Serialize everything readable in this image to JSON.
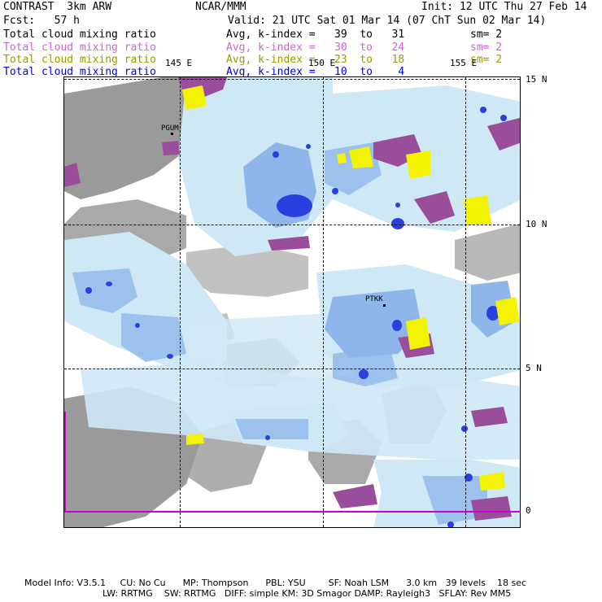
{
  "header": {
    "model": "CONTRAST  3km ARW",
    "center": "NCAR/MMM",
    "init": "Init: 12 UTC Thu 27 Feb 14",
    "fcst": "Fcst:   57 h",
    "valid": "Valid: 21 UTC Sat 01 Mar 14 (07 ChT Sun 02 Mar 14)"
  },
  "fields": [
    {
      "name": "Total cloud mixing ratio",
      "stat": "Avg, k-index =   39  to   31",
      "sm": "sm= 2",
      "color": "#000000"
    },
    {
      "name": "Total cloud mixing ratio",
      "stat": "Avg, k-index =   30  to   24",
      "sm": "sm= 2",
      "color": "#cc66cc"
    },
    {
      "name": "Total cloud mixing ratio",
      "stat": "Avg, k-index =   23  to   18",
      "sm": "sm= 2",
      "color": "#999900"
    },
    {
      "name": "Total cloud mixing ratio",
      "stat": "Avg, k-index =   10  to    4",
      "sm": "",
      "color": "#0000ee"
    }
  ],
  "map": {
    "lon_labels": [
      "145 E",
      "150 E",
      "155 E"
    ],
    "lat_labels": [
      "15 N",
      "10 N",
      "5 N",
      "0"
    ],
    "stations": [
      "PGUM",
      "PTKK"
    ]
  },
  "footer": {
    "line1": "Model Info: V3.5.1     CU: No Cu      MP: Thompson      PBL: YSU        SF: Noah LSM      3.0 km   39 levels    18 sec",
    "line2": "LW: RRTMG    SW: RRTMG   DIFF: simple KM: 3D Smagor DAMP: Rayleigh3   SFLAY: Rev MM5"
  },
  "colors": {
    "land_gray": "#9a9a9a",
    "light_blue": "#cfe8f5",
    "mid_blue": "#8fb6ea",
    "dark_blue": "#2b3fe0",
    "purple": "#9a4d9a",
    "yellow": "#f3f300"
  }
}
